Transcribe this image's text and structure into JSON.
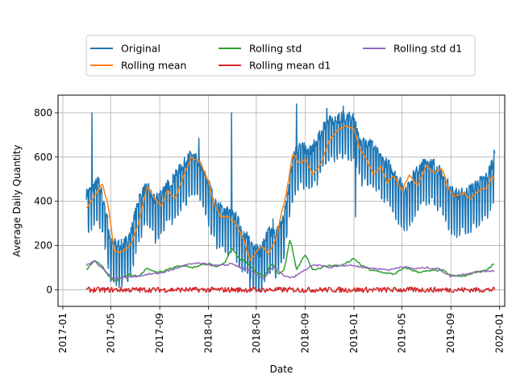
{
  "chart_data": {
    "type": "line",
    "title": "",
    "xlabel": "Date",
    "ylabel": "Average Daily Quantity",
    "grid": true,
    "legend_position": "top-center",
    "xlim": [
      "2016-12-20",
      "2020-01-14"
    ],
    "ylim": [
      -75,
      880
    ],
    "x_ticks": [
      "2017-01",
      "2017-05",
      "2017-09",
      "2018-01",
      "2018-05",
      "2018-09",
      "2019-01",
      "2019-05",
      "2019-09",
      "2020-01"
    ],
    "y_ticks": [
      0,
      200,
      400,
      600,
      800
    ],
    "x_range": [
      "2017-03-01",
      "2019-12-20"
    ],
    "series": [
      {
        "name": "Original",
        "color": "#1f77b4",
        "style": "weekly-oscillating",
        "amplitude": 95,
        "base": [
          [
            "2017-03-01",
            380
          ],
          [
            "2017-04-01",
            440
          ],
          [
            "2017-04-20",
            300
          ],
          [
            "2017-05-01",
            160
          ],
          [
            "2017-06-01",
            150
          ],
          [
            "2017-06-20",
            200
          ],
          [
            "2017-07-10",
            360
          ],
          [
            "2017-08-01",
            420
          ],
          [
            "2017-08-20",
            350
          ],
          [
            "2017-09-10",
            400
          ],
          [
            "2017-10-01",
            440
          ],
          [
            "2017-11-01",
            520
          ],
          [
            "2017-11-20",
            560
          ],
          [
            "2017-12-10",
            520
          ],
          [
            "2018-01-01",
            430
          ],
          [
            "2018-01-20",
            330
          ],
          [
            "2018-02-10",
            310
          ],
          [
            "2018-03-10",
            280
          ],
          [
            "2018-04-01",
            200
          ],
          [
            "2018-04-20",
            160
          ],
          [
            "2018-05-10",
            120
          ],
          [
            "2018-06-01",
            210
          ],
          [
            "2018-06-20",
            200
          ],
          [
            "2018-07-10",
            280
          ],
          [
            "2018-08-01",
            560
          ],
          [
            "2018-08-20",
            600
          ],
          [
            "2018-09-10",
            570
          ],
          [
            "2018-10-01",
            620
          ],
          [
            "2018-10-20",
            700
          ],
          [
            "2018-11-10",
            720
          ],
          [
            "2018-12-10",
            730
          ],
          [
            "2019-01-01",
            720
          ],
          [
            "2019-01-20",
            610
          ],
          [
            "2019-02-10",
            620
          ],
          [
            "2019-03-10",
            540
          ],
          [
            "2019-04-01",
            510
          ],
          [
            "2019-04-20",
            450
          ],
          [
            "2019-05-10",
            400
          ],
          [
            "2019-06-01",
            470
          ],
          [
            "2019-07-01",
            530
          ],
          [
            "2019-07-20",
            520
          ],
          [
            "2019-08-10",
            470
          ],
          [
            "2019-09-01",
            400
          ],
          [
            "2019-09-20",
            380
          ],
          [
            "2019-10-10",
            390
          ],
          [
            "2019-11-01",
            420
          ],
          [
            "2019-12-01",
            460
          ],
          [
            "2019-12-20",
            560
          ]
        ],
        "spikes": [
          [
            "2017-03-15",
            800
          ],
          [
            "2017-12-08",
            685
          ],
          [
            "2018-02-28",
            800
          ],
          [
            "2018-05-20",
            230
          ],
          [
            "2018-06-12",
            320
          ],
          [
            "2018-08-10",
            840
          ],
          [
            "2018-10-25",
            820
          ],
          [
            "2018-12-05",
            830
          ],
          [
            "2019-01-05",
            330
          ],
          [
            "2018-04-15",
            5
          ]
        ]
      },
      {
        "name": "Rolling mean",
        "color": "#ff7f0e",
        "points": [
          [
            "2017-03-01",
            370
          ],
          [
            "2017-03-20",
            420
          ],
          [
            "2017-04-10",
            480
          ],
          [
            "2017-04-25",
            380
          ],
          [
            "2017-05-10",
            170
          ],
          [
            "2017-06-01",
            175
          ],
          [
            "2017-06-20",
            200
          ],
          [
            "2017-07-10",
            300
          ],
          [
            "2017-08-01",
            470
          ],
          [
            "2017-08-20",
            410
          ],
          [
            "2017-09-05",
            380
          ],
          [
            "2017-09-20",
            450
          ],
          [
            "2017-10-10",
            410
          ],
          [
            "2017-11-01",
            520
          ],
          [
            "2017-11-20",
            600
          ],
          [
            "2017-12-10",
            580
          ],
          [
            "2018-01-01",
            490
          ],
          [
            "2018-01-15",
            390
          ],
          [
            "2018-02-01",
            330
          ],
          [
            "2018-02-20",
            330
          ],
          [
            "2018-03-10",
            300
          ],
          [
            "2018-04-01",
            220
          ],
          [
            "2018-04-15",
            130
          ],
          [
            "2018-05-01",
            170
          ],
          [
            "2018-05-15",
            200
          ],
          [
            "2018-06-01",
            160
          ],
          [
            "2018-06-20",
            230
          ],
          [
            "2018-07-01",
            330
          ],
          [
            "2018-07-15",
            430
          ],
          [
            "2018-08-01",
            620
          ],
          [
            "2018-08-15",
            570
          ],
          [
            "2018-09-01",
            590
          ],
          [
            "2018-09-20",
            520
          ],
          [
            "2018-10-10",
            570
          ],
          [
            "2018-11-01",
            680
          ],
          [
            "2018-11-20",
            720
          ],
          [
            "2018-12-10",
            740
          ],
          [
            "2019-01-01",
            730
          ],
          [
            "2019-01-15",
            640
          ],
          [
            "2019-02-01",
            590
          ],
          [
            "2019-02-20",
            520
          ],
          [
            "2019-03-10",
            560
          ],
          [
            "2019-03-25",
            480
          ],
          [
            "2019-04-10",
            520
          ],
          [
            "2019-05-01",
            450
          ],
          [
            "2019-05-20",
            520
          ],
          [
            "2019-06-10",
            470
          ],
          [
            "2019-07-01",
            560
          ],
          [
            "2019-07-20",
            530
          ],
          [
            "2019-08-10",
            550
          ],
          [
            "2019-08-25",
            460
          ],
          [
            "2019-09-10",
            420
          ],
          [
            "2019-10-01",
            440
          ],
          [
            "2019-10-20",
            410
          ],
          [
            "2019-11-10",
            450
          ],
          [
            "2019-12-01",
            460
          ],
          [
            "2019-12-15",
            520
          ],
          [
            "2019-12-20",
            490
          ]
        ]
      },
      {
        "name": "Rolling std",
        "color": "#2ca02c",
        "points": [
          [
            "2017-03-01",
            90
          ],
          [
            "2017-03-20",
            130
          ],
          [
            "2017-04-10",
            110
          ],
          [
            "2017-04-25",
            60
          ],
          [
            "2017-05-10",
            40
          ],
          [
            "2017-06-01",
            55
          ],
          [
            "2017-06-20",
            70
          ],
          [
            "2017-07-10",
            60
          ],
          [
            "2017-08-01",
            100
          ],
          [
            "2017-08-20",
            80
          ],
          [
            "2017-09-10",
            85
          ],
          [
            "2017-10-01",
            100
          ],
          [
            "2017-11-01",
            110
          ],
          [
            "2017-11-20",
            100
          ],
          [
            "2017-12-10",
            110
          ],
          [
            "2018-01-01",
            120
          ],
          [
            "2018-01-20",
            100
          ],
          [
            "2018-02-10",
            120
          ],
          [
            "2018-03-01",
            190
          ],
          [
            "2018-03-20",
            140
          ],
          [
            "2018-04-10",
            120
          ],
          [
            "2018-05-01",
            80
          ],
          [
            "2018-05-20",
            60
          ],
          [
            "2018-06-10",
            120
          ],
          [
            "2018-06-25",
            70
          ],
          [
            "2018-07-10",
            90
          ],
          [
            "2018-07-25",
            230
          ],
          [
            "2018-08-10",
            90
          ],
          [
            "2018-09-01",
            160
          ],
          [
            "2018-09-20",
            90
          ],
          [
            "2018-10-10",
            100
          ],
          [
            "2018-11-01",
            110
          ],
          [
            "2018-12-01",
            110
          ],
          [
            "2019-01-01",
            140
          ],
          [
            "2019-01-20",
            110
          ],
          [
            "2019-02-10",
            90
          ],
          [
            "2019-03-10",
            80
          ],
          [
            "2019-04-10",
            70
          ],
          [
            "2019-05-10",
            100
          ],
          [
            "2019-06-10",
            80
          ],
          [
            "2019-07-10",
            85
          ],
          [
            "2019-08-10",
            90
          ],
          [
            "2019-09-01",
            65
          ],
          [
            "2019-10-01",
            60
          ],
          [
            "2019-11-01",
            80
          ],
          [
            "2019-12-01",
            90
          ],
          [
            "2019-12-20",
            120
          ]
        ]
      },
      {
        "name": "Rolling mean d1",
        "color": "#d62728",
        "style": "noise",
        "level": 0,
        "amplitude": 12,
        "points": [
          [
            "2017-03-01",
            0
          ],
          [
            "2019-12-20",
            0
          ]
        ]
      },
      {
        "name": "Rolling std d1",
        "color": "#9467bd",
        "points": [
          [
            "2017-03-01",
            110
          ],
          [
            "2017-03-20",
            130
          ],
          [
            "2017-04-10",
            100
          ],
          [
            "2017-04-25",
            70
          ],
          [
            "2017-05-10",
            50
          ],
          [
            "2017-06-01",
            55
          ],
          [
            "2017-07-01",
            60
          ],
          [
            "2017-08-01",
            70
          ],
          [
            "2017-09-01",
            75
          ],
          [
            "2017-10-01",
            90
          ],
          [
            "2017-11-01",
            110
          ],
          [
            "2017-12-01",
            120
          ],
          [
            "2018-01-01",
            115
          ],
          [
            "2018-01-20",
            110
          ],
          [
            "2018-02-10",
            110
          ],
          [
            "2018-03-01",
            120
          ],
          [
            "2018-03-20",
            100
          ],
          [
            "2018-04-10",
            90
          ],
          [
            "2018-05-01",
            70
          ],
          [
            "2018-05-20",
            50
          ],
          [
            "2018-06-10",
            100
          ],
          [
            "2018-06-25",
            90
          ],
          [
            "2018-07-10",
            60
          ],
          [
            "2018-08-01",
            55
          ],
          [
            "2018-09-01",
            90
          ],
          [
            "2018-09-20",
            110
          ],
          [
            "2018-10-10",
            110
          ],
          [
            "2018-11-01",
            100
          ],
          [
            "2018-12-01",
            110
          ],
          [
            "2019-01-01",
            110
          ],
          [
            "2019-02-01",
            100
          ],
          [
            "2019-03-01",
            95
          ],
          [
            "2019-04-01",
            90
          ],
          [
            "2019-05-01",
            105
          ],
          [
            "2019-06-01",
            95
          ],
          [
            "2019-07-01",
            100
          ],
          [
            "2019-08-01",
            95
          ],
          [
            "2019-09-01",
            60
          ],
          [
            "2019-10-01",
            70
          ],
          [
            "2019-11-01",
            80
          ],
          [
            "2019-12-01",
            85
          ],
          [
            "2019-12-20",
            85
          ]
        ]
      }
    ]
  }
}
